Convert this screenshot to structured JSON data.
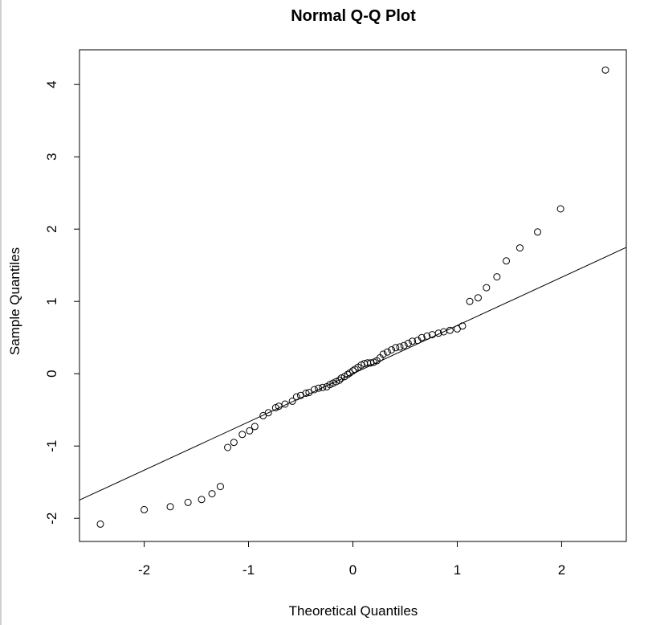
{
  "chart_data": {
    "type": "scatter",
    "title": "Normal Q-Q Plot",
    "xlabel": "Theoretical Quantiles",
    "ylabel": "Sample Quantiles",
    "xlim": [
      -2.62,
      2.62
    ],
    "ylim": [
      -2.32,
      4.48
    ],
    "xticks": [
      -2,
      -1,
      0,
      1,
      2
    ],
    "xtick_labels": [
      "-2",
      "-1",
      "0",
      "1",
      "2"
    ],
    "yticks": [
      -2,
      -1,
      0,
      1,
      2,
      3,
      4
    ],
    "ytick_labels": [
      "-2",
      "-1",
      "0",
      "1",
      "2",
      "3",
      "4"
    ],
    "grid": false,
    "reference_line": {
      "slope": 0.667,
      "intercept": 0.0
    },
    "x": [
      -2.42,
      -2.0,
      -1.75,
      -1.58,
      -1.45,
      -1.35,
      -1.27,
      -1.2,
      -1.14,
      -1.06,
      -0.99,
      -0.94,
      -0.86,
      -0.81,
      -0.74,
      -0.71,
      -0.65,
      -0.58,
      -0.54,
      -0.5,
      -0.45,
      -0.42,
      -0.37,
      -0.33,
      -0.29,
      -0.25,
      -0.22,
      -0.19,
      -0.16,
      -0.13,
      -0.11,
      -0.08,
      -0.05,
      -0.03,
      0.0,
      0.02,
      0.05,
      0.08,
      0.11,
      0.14,
      0.17,
      0.2,
      0.23,
      0.26,
      0.29,
      0.33,
      0.37,
      0.41,
      0.45,
      0.49,
      0.53,
      0.57,
      0.62,
      0.66,
      0.71,
      0.76,
      0.82,
      0.87,
      0.93,
      1.0,
      1.05,
      1.12,
      1.2,
      1.28,
      1.38,
      1.47,
      1.6,
      1.77,
      1.99,
      2.42
    ],
    "y": [
      -2.08,
      -1.88,
      -1.84,
      -1.78,
      -1.74,
      -1.66,
      -1.56,
      -1.02,
      -0.95,
      -0.84,
      -0.79,
      -0.73,
      -0.58,
      -0.54,
      -0.47,
      -0.45,
      -0.42,
      -0.38,
      -0.32,
      -0.27,
      -0.26,
      -0.22,
      -0.2,
      -0.19,
      -0.18,
      -0.15,
      -0.11,
      -0.09,
      -0.06,
      -0.04,
      -0.01,
      0.01,
      0.04,
      0.06,
      0.09,
      0.12,
      0.14,
      0.15,
      0.18,
      0.22,
      0.27,
      0.3,
      0.33,
      0.36,
      0.39,
      0.42,
      0.45,
      0.5,
      0.52,
      0.54,
      0.56,
      0.58,
      0.6,
      0.62,
      0.66,
      1.0,
      1.05,
      1.19,
      1.34,
      1.56,
      1.74,
      1.96,
      2.28,
      4.2,
      0.15,
      0.16,
      -0.3,
      0.37,
      0.46,
      -0.13
    ]
  }
}
